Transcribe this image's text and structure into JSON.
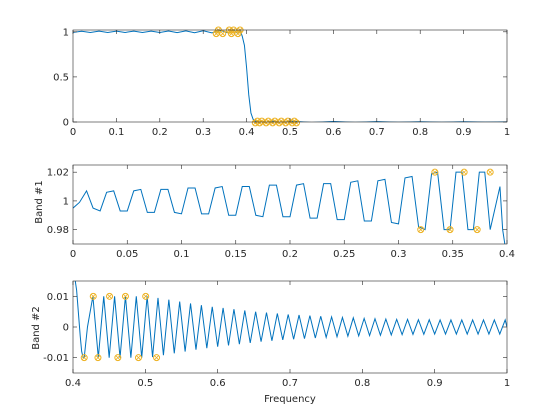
{
  "colors": {
    "line": "#0072BD",
    "marker": "#EDB120",
    "axis": "#262626",
    "background": "#ffffff"
  },
  "chart_data": [
    {
      "type": "line",
      "title": "",
      "xlabel": "",
      "ylabel": "",
      "xlim": [
        0,
        1
      ],
      "ylim": [
        0,
        1.02
      ],
      "xticks": [
        0,
        0.1,
        0.2,
        0.3,
        0.4,
        0.5,
        0.6,
        0.7,
        0.8,
        0.9,
        1
      ],
      "xtick_labels": [
        "0",
        "0.1",
        "0.2",
        "0.3",
        "0.4",
        "0.5",
        "0.6",
        "0.7",
        "0.8",
        "0.9",
        "1"
      ],
      "yticks": [
        0,
        0.5,
        1
      ],
      "ytick_labels": [
        "0",
        "0.5",
        "1"
      ],
      "grid": false,
      "series": [
        {
          "x": [
            0,
            0.02,
            0.04,
            0.06,
            0.08,
            0.1,
            0.12,
            0.14,
            0.16,
            0.18,
            0.2,
            0.22,
            0.24,
            0.26,
            0.28,
            0.3,
            0.32,
            0.34,
            0.36,
            0.37,
            0.38,
            0.385,
            0.39,
            0.395,
            0.4,
            0.405,
            0.41,
            0.415,
            0.42,
            0.44,
            0.46,
            0.48,
            0.5,
            0.55,
            0.6,
            0.65,
            0.7,
            0.75,
            0.8,
            0.85,
            0.9,
            0.95,
            1
          ],
          "y": [
            0.994,
            1.006,
            0.993,
            1.007,
            0.993,
            1.007,
            0.993,
            1.008,
            0.992,
            1.008,
            0.992,
            1.009,
            0.991,
            1.01,
            0.99,
            1.012,
            0.988,
            1.015,
            0.985,
            1.02,
            0.98,
            1.02,
            0.95,
            0.85,
            0.6,
            0.3,
            0.1,
            0.03,
            0.01,
            -0.01,
            0.01,
            -0.01,
            0.01,
            -0.005,
            0.005,
            -0.004,
            0.004,
            -0.003,
            0.003,
            -0.003,
            0.003,
            -0.002,
            0.002
          ]
        }
      ],
      "markers": {
        "x": [
          0.33,
          0.335,
          0.345,
          0.36,
          0.365,
          0.37,
          0.38,
          0.385,
          0.42,
          0.425,
          0.43,
          0.435,
          0.445,
          0.45,
          0.46,
          0.465,
          0.475,
          0.48,
          0.49,
          0.495,
          0.505,
          0.51,
          0.515
        ],
        "y": [
          0.98,
          1.02,
          0.98,
          1.02,
          0.98,
          1.02,
          0.98,
          1.02,
          -0.01,
          0.01,
          -0.01,
          0.01,
          -0.01,
          0.01,
          -0.01,
          0.01,
          -0.01,
          0.01,
          -0.01,
          0.01,
          -0.01,
          0.01,
          -0.01
        ]
      }
    },
    {
      "type": "line",
      "title": "",
      "xlabel": "",
      "ylabel": "Band #1",
      "xlim": [
        0,
        0.4
      ],
      "ylim": [
        0.97,
        1.025
      ],
      "xticks": [
        0,
        0.05,
        0.1,
        0.15,
        0.2,
        0.25,
        0.3,
        0.35,
        0.4
      ],
      "xtick_labels": [
        "0",
        "0.05",
        "0.1",
        "0.15",
        "0.2",
        "0.25",
        "0.3",
        "0.35",
        "0.4"
      ],
      "yticks": [
        0.98,
        1,
        1.02
      ],
      "ytick_labels": [
        "0.98",
        "1",
        "1.02"
      ],
      "grid": false,
      "series": [
        {
          "x": [
            0,
            0.006,
            0.0125,
            0.0185,
            0.025,
            0.031,
            0.0375,
            0.0435,
            0.05,
            0.056,
            0.0625,
            0.0685,
            0.075,
            0.081,
            0.0875,
            0.0935,
            0.1,
            0.106,
            0.1125,
            0.1185,
            0.125,
            0.131,
            0.1375,
            0.1435,
            0.15,
            0.156,
            0.1625,
            0.1685,
            0.175,
            0.181,
            0.1875,
            0.1935,
            0.2,
            0.206,
            0.2125,
            0.2185,
            0.225,
            0.231,
            0.2375,
            0.2435,
            0.25,
            0.256,
            0.2625,
            0.2685,
            0.275,
            0.281,
            0.2875,
            0.2935,
            0.3,
            0.306,
            0.3125,
            0.3185,
            0.3245,
            0.3305,
            0.336,
            0.342,
            0.3475,
            0.353,
            0.3585,
            0.364,
            0.369,
            0.3745,
            0.3795,
            0.3845,
            0.389,
            0.3935,
            0.396,
            0.4
          ],
          "y": [
            0.995,
            0.999,
            1.007,
            0.995,
            0.993,
            1.006,
            1.007,
            0.993,
            0.993,
            1.007,
            1.008,
            0.992,
            0.992,
            1.008,
            1.008,
            0.992,
            0.991,
            1.009,
            1.009,
            0.991,
            0.991,
            1.009,
            1.01,
            0.99,
            0.99,
            1.01,
            1.01,
            0.99,
            0.989,
            1.011,
            1.011,
            0.989,
            0.989,
            1.011,
            1.012,
            0.988,
            0.988,
            1.012,
            1.012,
            0.987,
            0.987,
            1.013,
            1.014,
            0.986,
            0.986,
            1.014,
            1.015,
            0.985,
            0.984,
            1.016,
            1.017,
            0.982,
            0.98,
            1.019,
            1.02,
            0.98,
            0.98,
            1.02,
            1.02,
            0.98,
            0.98,
            1.02,
            1.02,
            0.98,
            0.995,
            1.01,
            0.98,
            0.96
          ]
        }
      ],
      "markers": {
        "x": [
          0.3205,
          0.3335,
          0.3475,
          0.3605,
          0.3725,
          0.3845
        ],
        "y": [
          0.98,
          1.02,
          0.98,
          1.02,
          0.98,
          1.02
        ]
      }
    },
    {
      "type": "line",
      "title": "",
      "xlabel": "Frequency",
      "ylabel": "Band #2",
      "xlim": [
        0.4,
        1
      ],
      "ylim": [
        -0.015,
        0.015
      ],
      "xticks": [
        0.4,
        0.5,
        0.6,
        0.7,
        0.8,
        0.9,
        1
      ],
      "xtick_labels": [
        "0.4",
        "0.5",
        "0.6",
        "0.7",
        "0.8",
        "0.9",
        "1"
      ],
      "yticks": [
        -0.01,
        0,
        0.01
      ],
      "ytick_labels": [
        "-0.01",
        "0",
        "0.01"
      ],
      "grid": false,
      "series": [
        {
          "x": [
            0.4,
            0.405,
            0.408,
            0.41,
            0.412,
            0.414,
            0.4155,
            0.42,
            0.4275,
            0.435,
            0.4425,
            0.45,
            0.4575,
            0.465,
            0.4725,
            0.48,
            0.4875,
            0.495,
            0.5025,
            0.51,
            0.5175,
            0.525,
            0.5325,
            0.54,
            0.5475,
            0.555,
            0.5625,
            0.57,
            0.5775,
            0.585,
            0.5925,
            0.6,
            0.6075,
            0.615,
            0.6225,
            0.63,
            0.6375,
            0.645,
            0.6525,
            0.66,
            0.6675,
            0.675,
            0.6825,
            0.69,
            0.6975,
            0.705,
            0.7125,
            0.72,
            0.7275,
            0.735,
            0.7425,
            0.75,
            0.7575,
            0.765,
            0.7725,
            0.78,
            0.7875,
            0.795,
            0.8025,
            0.81,
            0.8175,
            0.825,
            0.8325,
            0.84,
            0.8475,
            0.855,
            0.8625,
            0.87,
            0.8775,
            0.885,
            0.8925,
            0.9,
            0.9075,
            0.915,
            0.9225,
            0.93,
            0.9375,
            0.945,
            0.9525,
            0.96,
            0.9675,
            0.975,
            0.9825,
            0.99,
            0.9975,
            1
          ],
          "y": [
            0.02,
            0.012,
            0.003,
            -0.003,
            -0.008,
            -0.01,
            -0.01,
            0,
            0.01,
            -0.01,
            0.01,
            -0.01,
            0.01,
            -0.01,
            0.01,
            -0.01,
            0.01,
            -0.01,
            0.01,
            -0.0098,
            0.0095,
            -0.0092,
            0.0089,
            -0.0086,
            0.0083,
            -0.008,
            0.0077,
            -0.0074,
            0.0071,
            -0.0069,
            0.0066,
            -0.0064,
            0.0062,
            -0.006,
            0.0058,
            -0.0056,
            0.0054,
            -0.0052,
            0.005,
            -0.0048,
            0.0047,
            -0.0045,
            0.0044,
            -0.0042,
            0.0041,
            -0.004,
            0.0039,
            -0.0038,
            0.0037,
            -0.0036,
            0.0035,
            -0.0034,
            0.0033,
            -0.0032,
            0.0031,
            -0.003,
            0.003,
            -0.0029,
            0.0028,
            -0.0028,
            0.0027,
            -0.0027,
            0.0026,
            -0.0026,
            0.0025,
            -0.0025,
            0.0025,
            -0.0024,
            0.0024,
            -0.0024,
            0.0024,
            -0.0023,
            0.0023,
            -0.0023,
            0.0023,
            -0.0023,
            0.0023,
            -0.0023,
            0.0023,
            -0.0023,
            0.0023,
            -0.0023,
            0.0023,
            -0.0023,
            0.0023,
            0
          ]
        }
      ],
      "markers": {
        "x": [
          0.4155,
          0.428,
          0.4345,
          0.4505,
          0.462,
          0.4725,
          0.4905,
          0.5005,
          0.5155
        ],
        "y": [
          -0.01,
          0.01,
          -0.01,
          0.01,
          -0.01,
          0.01,
          -0.01,
          0.01,
          -0.01
        ]
      }
    }
  ]
}
